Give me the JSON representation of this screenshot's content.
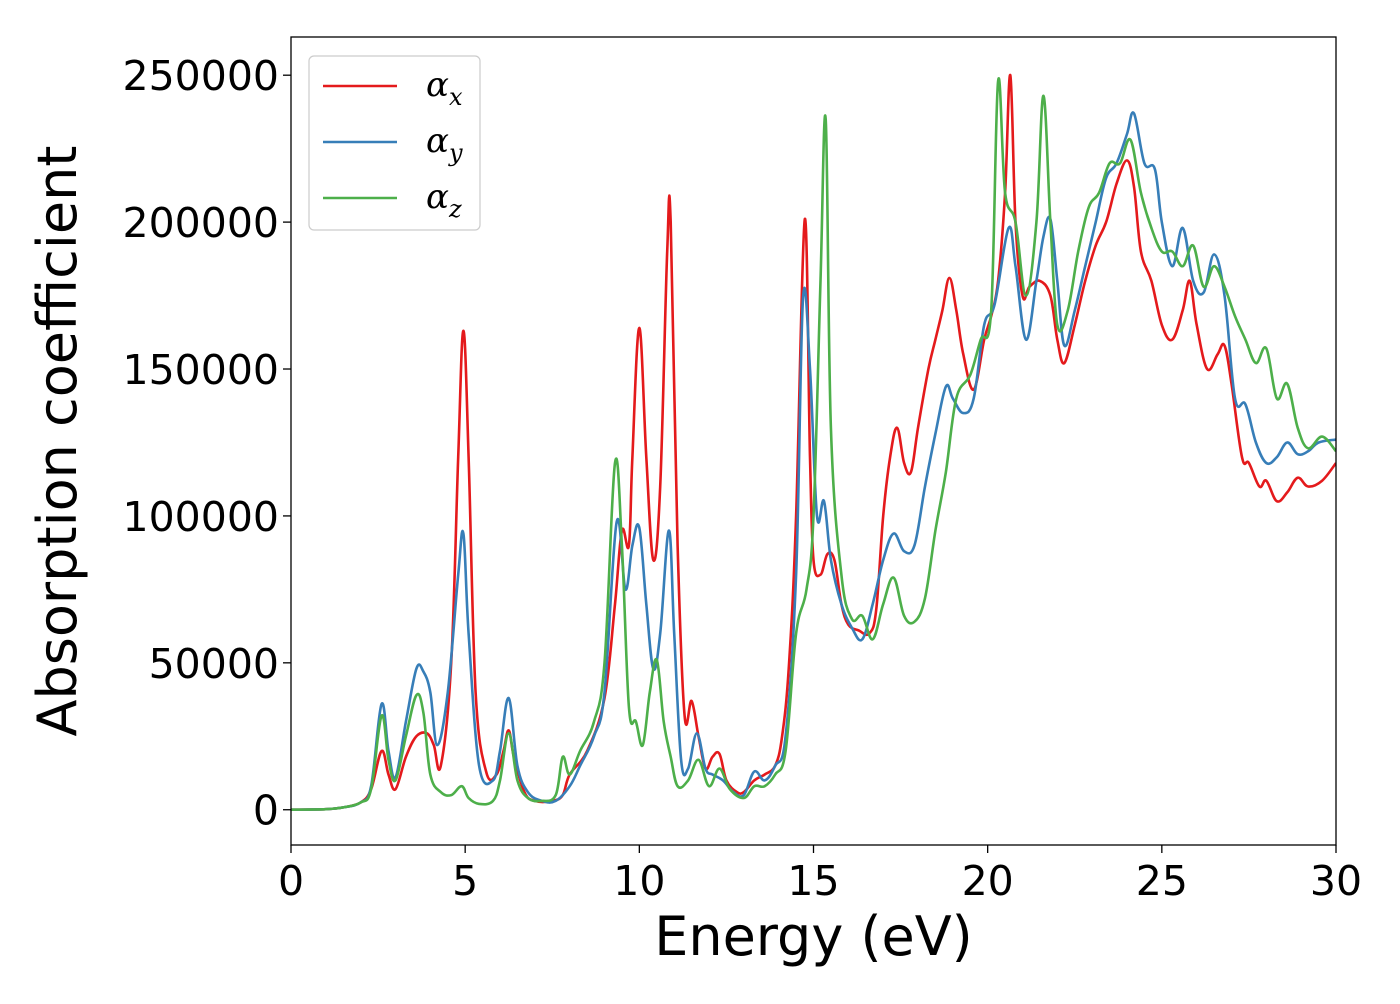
{
  "chart_data": {
    "type": "line",
    "title": "",
    "xlabel": "Energy (eV)",
    "ylabel": "Absorption coefficient",
    "xlim": [
      0,
      30
    ],
    "ylim": [
      -12000,
      263000
    ],
    "xticks": [
      0,
      5,
      10,
      15,
      20,
      25,
      30
    ],
    "xtick_labels": [
      "0",
      "5",
      "10",
      "15",
      "20",
      "25",
      "30"
    ],
    "yticks": [
      0,
      50000,
      100000,
      150000,
      200000,
      250000
    ],
    "ytick_labels": [
      "0",
      "50000",
      "100000",
      "150000",
      "200000",
      "250000"
    ],
    "grid": false,
    "legend_position": "top-left",
    "series": [
      {
        "name": "α",
        "subscript": "x",
        "color": "#e41a1c",
        "x": [
          0,
          1,
          1.5,
          2,
          2.3,
          2.6,
          2.8,
          3.0,
          3.3,
          3.6,
          3.9,
          4.1,
          4.3,
          4.6,
          4.8,
          4.95,
          5.1,
          5.3,
          5.6,
          5.9,
          6.1,
          6.25,
          6.4,
          6.7,
          7.0,
          7.5,
          7.8,
          8.0,
          8.5,
          9.0,
          9.3,
          9.5,
          9.7,
          9.8,
          10.0,
          10.2,
          10.4,
          10.6,
          10.8,
          10.9,
          11.1,
          11.3,
          11.5,
          11.7,
          11.9,
          12.1,
          12.3,
          12.5,
          12.8,
          13.0,
          13.3,
          13.6,
          13.9,
          14.1,
          14.3,
          14.5,
          14.75,
          14.9,
          15.0,
          15.2,
          15.4,
          15.6,
          15.8,
          16.0,
          16.3,
          16.6,
          16.8,
          17.0,
          17.2,
          17.4,
          17.6,
          17.8,
          18.0,
          18.3,
          18.5,
          18.7,
          18.9,
          19.1,
          19.3,
          19.6,
          19.9,
          20.1,
          20.3,
          20.5,
          20.65,
          20.8,
          21.0,
          21.2,
          21.5,
          21.8,
          22.0,
          22.2,
          22.5,
          22.8,
          23.1,
          23.4,
          23.7,
          24.0,
          24.2,
          24.4,
          24.7,
          25.0,
          25.3,
          25.6,
          25.8,
          26.0,
          26.3,
          26.6,
          26.8,
          27.0,
          27.3,
          27.5,
          27.8,
          28.0,
          28.3,
          28.6,
          28.9,
          29.2,
          29.6,
          30.0
        ],
        "values": [
          0,
          200,
          800,
          2500,
          7000,
          20000,
          12000,
          7000,
          18000,
          25000,
          26000,
          22000,
          15000,
          50000,
          120000,
          163000,
          120000,
          40000,
          13000,
          12000,
          20000,
          27000,
          18000,
          6000,
          3000,
          3000,
          5000,
          12000,
          20000,
          38000,
          70000,
          95000,
          90000,
          120000,
          164000,
          120000,
          85000,
          110000,
          190000,
          200000,
          90000,
          32000,
          37000,
          25000,
          14000,
          18000,
          19000,
          10000,
          6000,
          6000,
          10000,
          12000,
          15000,
          25000,
          50000,
          100000,
          201000,
          120000,
          85000,
          80000,
          87000,
          85000,
          70000,
          63000,
          61000,
          60000,
          68000,
          100000,
          120000,
          130000,
          118000,
          115000,
          130000,
          150000,
          160000,
          170000,
          181000,
          170000,
          155000,
          143000,
          160000,
          168000,
          180000,
          210000,
          250000,
          200000,
          175000,
          178000,
          180000,
          175000,
          160000,
          152000,
          165000,
          180000,
          192000,
          200000,
          213000,
          221000,
          212000,
          190000,
          180000,
          165000,
          160000,
          170000,
          180000,
          165000,
          150000,
          155000,
          158000,
          145000,
          120000,
          118000,
          110000,
          112000,
          105000,
          108000,
          113000,
          110000,
          112000,
          118000
        ]
      },
      {
        "name": "α",
        "subscript": "y",
        "color": "#377eb8",
        "x": [
          0,
          1,
          1.5,
          2,
          2.3,
          2.6,
          2.8,
          3.0,
          3.3,
          3.6,
          3.8,
          4.0,
          4.2,
          4.5,
          4.8,
          4.95,
          5.1,
          5.4,
          5.8,
          6.0,
          6.25,
          6.5,
          6.8,
          7.2,
          7.6,
          8.0,
          8.3,
          8.7,
          9.0,
          9.35,
          9.6,
          9.8,
          10.0,
          10.2,
          10.4,
          10.6,
          10.85,
          11.0,
          11.2,
          11.4,
          11.65,
          11.9,
          12.1,
          12.4,
          12.7,
          13.0,
          13.3,
          13.6,
          13.9,
          14.2,
          14.5,
          14.7,
          14.9,
          15.1,
          15.3,
          15.5,
          15.8,
          16.1,
          16.4,
          16.7,
          17.0,
          17.3,
          17.6,
          17.9,
          18.2,
          18.5,
          18.8,
          19.0,
          19.3,
          19.6,
          19.9,
          20.2,
          20.6,
          20.8,
          21.1,
          21.4,
          21.6,
          21.8,
          22.0,
          22.2,
          22.5,
          22.8,
          23.1,
          23.4,
          23.7,
          24.0,
          24.2,
          24.5,
          24.8,
          25.0,
          25.3,
          25.6,
          25.9,
          26.2,
          26.5,
          26.8,
          27.1,
          27.4,
          27.7,
          28.0,
          28.3,
          28.6,
          28.9,
          29.2,
          29.5,
          30.0
        ],
        "values": [
          0,
          200,
          800,
          2500,
          8000,
          36000,
          20000,
          11000,
          30000,
          48000,
          47000,
          40000,
          22000,
          40000,
          80000,
          94000,
          60000,
          15000,
          10000,
          20000,
          38000,
          15000,
          6000,
          3000,
          3000,
          8000,
          15000,
          25000,
          40000,
          98000,
          75000,
          90000,
          96000,
          70000,
          48000,
          60000,
          95000,
          60000,
          17000,
          14000,
          26000,
          14000,
          12000,
          10000,
          6000,
          5000,
          13000,
          10000,
          15000,
          25000,
          80000,
          174000,
          150000,
          100000,
          105000,
          85000,
          70000,
          62000,
          58000,
          70000,
          85000,
          94000,
          88000,
          90000,
          110000,
          128000,
          144000,
          140000,
          135000,
          140000,
          165000,
          172000,
          198000,
          185000,
          160000,
          180000,
          195000,
          201000,
          180000,
          158000,
          170000,
          185000,
          200000,
          215000,
          220000,
          230000,
          237000,
          220000,
          218000,
          200000,
          185000,
          198000,
          180000,
          176000,
          189000,
          175000,
          140000,
          138000,
          125000,
          118000,
          120000,
          125000,
          121000,
          122000,
          125000,
          126000
        ]
      },
      {
        "name": "α",
        "subscript": "z",
        "color": "#4daf4a",
        "x": [
          0,
          1,
          1.5,
          2,
          2.3,
          2.6,
          2.8,
          3.0,
          3.3,
          3.6,
          3.8,
          4.0,
          4.3,
          4.6,
          4.9,
          5.1,
          5.4,
          5.8,
          6.0,
          6.25,
          6.5,
          6.8,
          7.2,
          7.6,
          7.8,
          8.0,
          8.3,
          8.7,
          9.0,
          9.3,
          9.5,
          9.7,
          9.9,
          10.1,
          10.3,
          10.5,
          10.7,
          10.9,
          11.1,
          11.4,
          11.7,
          12.0,
          12.3,
          12.6,
          13.0,
          13.3,
          13.6,
          13.9,
          14.2,
          14.5,
          14.8,
          15.0,
          15.2,
          15.35,
          15.5,
          15.8,
          16.1,
          16.4,
          16.7,
          17.0,
          17.3,
          17.6,
          17.9,
          18.2,
          18.5,
          18.8,
          19.1,
          19.5,
          19.8,
          20.1,
          20.3,
          20.5,
          20.8,
          21.1,
          21.4,
          21.6,
          21.8,
          22.0,
          22.3,
          22.6,
          22.9,
          23.2,
          23.5,
          23.8,
          24.1,
          24.4,
          24.7,
          25.0,
          25.3,
          25.6,
          25.9,
          26.2,
          26.5,
          26.8,
          27.1,
          27.4,
          27.7,
          28.0,
          28.3,
          28.6,
          28.9,
          29.2,
          29.6,
          30.0
        ],
        "values": [
          0,
          200,
          800,
          2500,
          7000,
          32000,
          17000,
          10000,
          25000,
          39000,
          33000,
          12000,
          6000,
          5000,
          8000,
          4000,
          2000,
          3000,
          10000,
          26000,
          10000,
          4000,
          3000,
          5000,
          18000,
          12000,
          20000,
          30000,
          50000,
          118000,
          90000,
          35000,
          30000,
          22000,
          40000,
          51000,
          30000,
          18000,
          8000,
          10000,
          17000,
          8000,
          14000,
          7000,
          4000,
          8000,
          8000,
          12000,
          20000,
          60000,
          75000,
          100000,
          180000,
          235000,
          130000,
          80000,
          65000,
          66000,
          58000,
          70000,
          79000,
          66000,
          64000,
          72000,
          95000,
          115000,
          140000,
          148000,
          160000,
          170000,
          248000,
          210000,
          200000,
          175000,
          200000,
          243000,
          200000,
          165000,
          170000,
          190000,
          205000,
          210000,
          220000,
          220000,
          228000,
          210000,
          198000,
          190000,
          190000,
          185000,
          192000,
          178000,
          185000,
          178000,
          168000,
          160000,
          152000,
          157000,
          140000,
          145000,
          130000,
          123000,
          127000,
          122000
        ]
      }
    ]
  }
}
